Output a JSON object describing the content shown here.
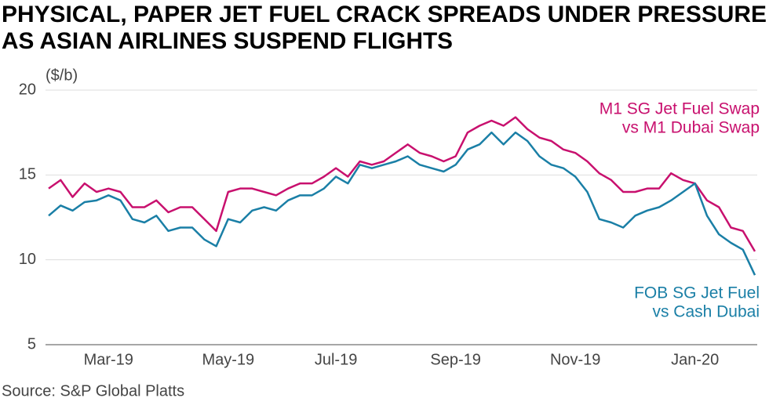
{
  "chart_data": {
    "type": "line",
    "title": [
      "PHYSICAL, PAPER JET FUEL CRACK SPREADS UNDER PRESSURE",
      "AS ASIAN AIRLINES SUSPEND FLIGHTS"
    ],
    "y_label": "($/b)",
    "source": "Source: S&P Global Platts",
    "categories": [
      null,
      null,
      null,
      null,
      null,
      "Mar-19",
      null,
      null,
      null,
      null,
      null,
      null,
      null,
      null,
      null,
      "May-19",
      null,
      null,
      null,
      null,
      null,
      null,
      null,
      null,
      "Jul-19",
      null,
      null,
      null,
      null,
      null,
      null,
      null,
      null,
      null,
      "Sep-19",
      null,
      null,
      null,
      null,
      null,
      null,
      null,
      null,
      null,
      "Nov-19",
      null,
      null,
      null,
      null,
      null,
      null,
      null,
      null,
      null,
      "Jan-20",
      null,
      null,
      null,
      null,
      null
    ],
    "series": [
      {
        "name": [
          "M1 SG Jet Fuel Swap",
          "vs M1 Dubai Swap"
        ],
        "color": "#c8106e",
        "values": [
          14.2,
          14.7,
          13.7,
          14.5,
          14.0,
          14.2,
          14.0,
          13.1,
          13.1,
          13.5,
          12.8,
          13.1,
          13.1,
          12.4,
          11.7,
          14.0,
          14.2,
          14.2,
          14.0,
          13.8,
          14.2,
          14.5,
          14.5,
          14.9,
          15.4,
          14.9,
          15.8,
          15.6,
          15.8,
          16.3,
          16.8,
          16.3,
          16.1,
          15.8,
          16.1,
          17.5,
          17.9,
          18.2,
          17.9,
          18.4,
          17.7,
          17.2,
          17.0,
          16.5,
          16.3,
          15.8,
          15.1,
          14.7,
          14.0,
          14.0,
          14.2,
          14.2,
          15.1,
          14.7,
          14.5,
          13.5,
          13.1,
          11.9,
          11.7,
          10.5
        ]
      },
      {
        "name": [
          "FOB SG Jet Fuel",
          "vs Cash Dubai"
        ],
        "color": "#1a7fa6",
        "values": [
          12.6,
          13.2,
          12.9,
          13.4,
          13.5,
          13.8,
          13.5,
          12.4,
          12.2,
          12.6,
          11.7,
          11.9,
          11.9,
          11.2,
          10.8,
          12.4,
          12.2,
          12.9,
          13.1,
          12.9,
          13.5,
          13.8,
          13.8,
          14.2,
          14.9,
          14.5,
          15.6,
          15.4,
          15.6,
          15.8,
          16.1,
          15.6,
          15.4,
          15.2,
          15.6,
          16.5,
          16.8,
          17.5,
          16.8,
          17.5,
          17.0,
          16.1,
          15.6,
          15.4,
          14.9,
          14.0,
          12.4,
          12.2,
          11.9,
          12.6,
          12.9,
          13.1,
          13.5,
          14.0,
          14.5,
          12.6,
          11.5,
          11.0,
          10.6,
          9.1
        ]
      }
    ],
    "ylim": [
      5,
      20
    ],
    "yticks": [
      5,
      10,
      15,
      20
    ],
    "grid": true
  }
}
